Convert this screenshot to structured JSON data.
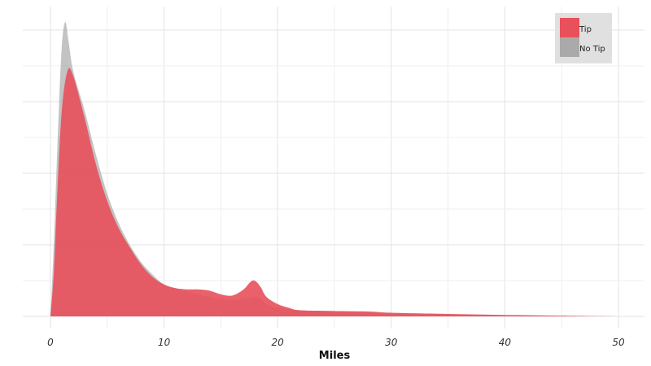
{
  "chart_data": {
    "type": "area",
    "xlabel": "Miles",
    "xlim": [
      0,
      50
    ],
    "xticks": [
      "0",
      "10",
      "20",
      "30",
      "40",
      "50"
    ],
    "y_tick_labels_shown": false,
    "grid": true,
    "legend_position": "top-right",
    "series": [
      {
        "name": "Tip",
        "color": "#e8505b",
        "points": [
          [
            0,
            0.0
          ],
          [
            0.3,
            0.18
          ],
          [
            0.6,
            0.5
          ],
          [
            1.0,
            0.84
          ],
          [
            1.5,
            1.0
          ],
          [
            2.0,
            0.98
          ],
          [
            3.0,
            0.81
          ],
          [
            4.0,
            0.62
          ],
          [
            5.0,
            0.47
          ],
          [
            6.0,
            0.36
          ],
          [
            7.0,
            0.28
          ],
          [
            8.0,
            0.21
          ],
          [
            9.0,
            0.16
          ],
          [
            10.0,
            0.13
          ],
          [
            11.0,
            0.115
          ],
          [
            12.0,
            0.11
          ],
          [
            13.0,
            0.11
          ],
          [
            14.0,
            0.105
          ],
          [
            15.0,
            0.09
          ],
          [
            16.0,
            0.085
          ],
          [
            17.0,
            0.11
          ],
          [
            17.6,
            0.14
          ],
          [
            18.0,
            0.145
          ],
          [
            18.5,
            0.12
          ],
          [
            19.0,
            0.08
          ],
          [
            20.0,
            0.05
          ],
          [
            21.0,
            0.035
          ],
          [
            22.0,
            0.025
          ],
          [
            25.0,
            0.022
          ],
          [
            28.0,
            0.02
          ],
          [
            30.0,
            0.015
          ],
          [
            35.0,
            0.01
          ],
          [
            40.0,
            0.006
          ],
          [
            45.0,
            0.003
          ],
          [
            50.0,
            0.0
          ]
        ]
      },
      {
        "name": "No Tip",
        "color": "#aaaaaa",
        "points": [
          [
            0,
            0.0
          ],
          [
            0.3,
            0.3
          ],
          [
            0.7,
            0.8
          ],
          [
            1.0,
            1.1
          ],
          [
            1.3,
            1.2
          ],
          [
            1.6,
            1.12
          ],
          [
            2.0,
            1.0
          ],
          [
            3.0,
            0.84
          ],
          [
            4.0,
            0.66
          ],
          [
            5.0,
            0.5
          ],
          [
            6.0,
            0.38
          ],
          [
            7.0,
            0.29
          ],
          [
            8.0,
            0.22
          ],
          [
            9.0,
            0.17
          ],
          [
            10.0,
            0.13
          ],
          [
            11.0,
            0.115
          ],
          [
            12.0,
            0.1
          ],
          [
            13.0,
            0.09
          ],
          [
            14.0,
            0.08
          ],
          [
            15.0,
            0.07
          ],
          [
            16.0,
            0.065
          ],
          [
            17.0,
            0.07
          ],
          [
            18.0,
            0.08
          ],
          [
            18.5,
            0.07
          ],
          [
            19.0,
            0.05
          ],
          [
            20.0,
            0.035
          ],
          [
            22.0,
            0.025
          ],
          [
            25.0,
            0.02
          ],
          [
            30.0,
            0.012
          ],
          [
            35.0,
            0.008
          ],
          [
            40.0,
            0.005
          ],
          [
            45.0,
            0.002
          ],
          [
            50.0,
            0.0
          ]
        ]
      }
    ]
  },
  "legend": {
    "items": [
      {
        "label": "Tip",
        "color": "#e8505b"
      },
      {
        "label": "No Tip",
        "color": "#aaaaaa"
      }
    ]
  }
}
